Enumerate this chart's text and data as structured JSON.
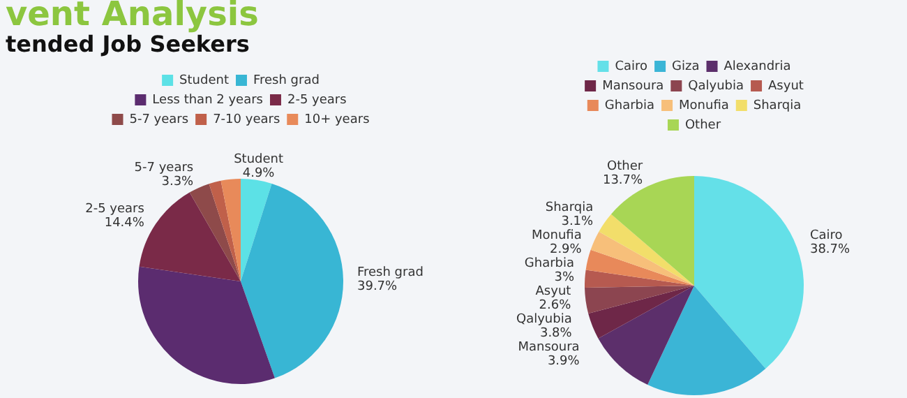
{
  "chart_data": [
    {
      "type": "pie",
      "title": "vent Analysis",
      "subtitle": "tended Job Seekers",
      "legend": "top",
      "categories": [
        "Student",
        "Fresh grad",
        "Less than 2 years",
        "2-5 years",
        "5-7 years",
        "7-10 years",
        "10+ years"
      ],
      "values": [
        4.9,
        39.7,
        32.7,
        14.4,
        3.3,
        1.9,
        3.1
      ],
      "colors": [
        "#5ce1e6",
        "#38b6d4",
        "#5b2c6f",
        "#7a2a48",
        "#8e4a4a",
        "#c0604a",
        "#e88a5a"
      ],
      "value_labels": [
        "4.9%",
        "39.7%",
        null,
        "14.4%",
        "3.3%",
        null,
        null
      ]
    },
    {
      "type": "pie",
      "legend": "top",
      "categories": [
        "Cairo",
        "Giza",
        "Alexandria",
        "Mansoura",
        "Qalyubia",
        "Asyut",
        "Gharbia",
        "Monufia",
        "Sharqia",
        "Other"
      ],
      "values": [
        38.7,
        18.3,
        10.0,
        3.9,
        3.8,
        2.6,
        3,
        2.9,
        3.1,
        13.7
      ],
      "colors": [
        "#64e0e8",
        "#3bb5d6",
        "#5c2f6b",
        "#6e2748",
        "#8c4550",
        "#b65a50",
        "#e8895a",
        "#f7bf7a",
        "#f2de6a",
        "#a8d655"
      ],
      "value_labels": [
        "38.7%",
        null,
        null,
        "3.9%",
        "3.8%",
        "2.6%",
        "3%",
        "2.9%",
        "3.1%",
        "13.7%"
      ]
    }
  ]
}
